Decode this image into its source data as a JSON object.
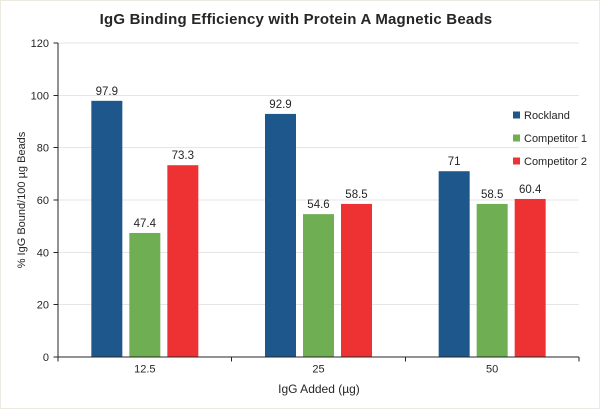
{
  "chart_data": {
    "type": "bar",
    "title": "IgG Binding Efficiency with Protein A Magnetic Beads",
    "xlabel": "IgG Added (µg)",
    "ylabel": "% IgG Bound/100 µg Beads",
    "categories": [
      "12.5",
      "25",
      "50"
    ],
    "series": [
      {
        "name": "Rockland",
        "color": "#1D578C",
        "values": [
          97.9,
          92.9,
          71
        ]
      },
      {
        "name": "Competitor 1",
        "color": "#6FAE53",
        "values": [
          47.4,
          54.6,
          58.5
        ]
      },
      {
        "name": "Competitor 2",
        "color": "#EE3233",
        "values": [
          73.3,
          58.5,
          60.4
        ]
      }
    ],
    "data_labels": {
      "Rockland": [
        "97.9",
        "92.9",
        "71"
      ],
      "Competitor 1": [
        "47.4",
        "54.6",
        "58.5"
      ],
      "Competitor 2": [
        "73.3",
        "58.5",
        "60.4"
      ]
    },
    "ylim": [
      0,
      120
    ],
    "ytick_interval": 20,
    "ytick_labels": [
      "0",
      "20",
      "40",
      "60",
      "80",
      "100",
      "120"
    ],
    "grid": true,
    "legend_position": "right"
  },
  "style": {
    "grid_color": "#E6E6E6",
    "axis_color": "#262626",
    "text_color": "#262626",
    "background": "#FFFFFF",
    "frame_border": "#ECE9E0"
  }
}
